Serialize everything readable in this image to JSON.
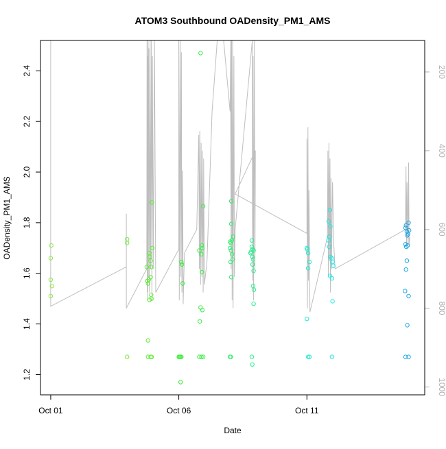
{
  "chart_data": {
    "type": "scatter",
    "title": "ATOM3 Southbound OADensity_PM1_AMS",
    "xlabel": "Date",
    "ylabel": "OADensity_PM1_AMS",
    "x_ticks": [
      "Oct 01",
      "Oct 06",
      "Oct 11"
    ],
    "y_ticks": [
      "1.2",
      "1.4",
      "1.6",
      "1.8",
      "2.0",
      "2.2",
      "2.4"
    ],
    "y_right_ticks": [
      "200",
      "400",
      "600",
      "800",
      "1000"
    ],
    "x_unit": "days of October",
    "x_range": [
      0.6,
      15.6
    ],
    "y_range": [
      1.12,
      2.52
    ],
    "y_right_range": [
      1020,
      120
    ],
    "colors": {
      "line": "#bebebe",
      "right_axis": "#b0b0b0",
      "frame": "#000000"
    },
    "points": [
      {
        "x": 1.02,
        "y": 1.71,
        "color": "#8ee84a"
      },
      {
        "x": 1.0,
        "y": 1.66,
        "color": "#8ee84a"
      },
      {
        "x": 1.0,
        "y": 1.575,
        "color": "#8ee84a"
      },
      {
        "x": 1.05,
        "y": 1.55,
        "color": "#8ee84a"
      },
      {
        "x": 1.0,
        "y": 1.51,
        "color": "#8ee84a"
      },
      {
        "x": 3.98,
        "y": 1.735,
        "color": "#72ea3c"
      },
      {
        "x": 3.98,
        "y": 1.72,
        "color": "#72ea3c"
      },
      {
        "x": 3.98,
        "y": 1.27,
        "color": "#72ea3c"
      },
      {
        "x": 4.75,
        "y": 1.625,
        "color": "#5eec34"
      },
      {
        "x": 4.77,
        "y": 1.57,
        "color": "#5eec34"
      },
      {
        "x": 4.8,
        "y": 1.56,
        "color": "#5eec34"
      },
      {
        "x": 4.85,
        "y": 1.68,
        "color": "#5eec34"
      },
      {
        "x": 4.87,
        "y": 1.665,
        "color": "#5eec34"
      },
      {
        "x": 4.9,
        "y": 1.65,
        "color": "#5eec34"
      },
      {
        "x": 4.92,
        "y": 1.625,
        "color": "#5eec34"
      },
      {
        "x": 4.95,
        "y": 1.88,
        "color": "#5eec34"
      },
      {
        "x": 4.97,
        "y": 1.7,
        "color": "#5eec34"
      },
      {
        "x": 4.9,
        "y": 1.585,
        "color": "#5eec34"
      },
      {
        "x": 4.83,
        "y": 1.575,
        "color": "#5eec34"
      },
      {
        "x": 4.92,
        "y": 1.515,
        "color": "#5eec34"
      },
      {
        "x": 4.93,
        "y": 1.5,
        "color": "#5eec34"
      },
      {
        "x": 4.85,
        "y": 1.495,
        "color": "#5eec34"
      },
      {
        "x": 4.8,
        "y": 1.335,
        "color": "#5eec34"
      },
      {
        "x": 4.8,
        "y": 1.27,
        "color": "#5eec34"
      },
      {
        "x": 4.9,
        "y": 1.27,
        "color": "#5eec34"
      },
      {
        "x": 4.94,
        "y": 1.27,
        "color": "#5eec34"
      },
      {
        "x": 6.1,
        "y": 1.645,
        "color": "#3cee3a"
      },
      {
        "x": 6.12,
        "y": 1.635,
        "color": "#3cee3a"
      },
      {
        "x": 6.15,
        "y": 1.56,
        "color": "#3cee3a"
      },
      {
        "x": 6.0,
        "y": 1.27,
        "color": "#3cee3a"
      },
      {
        "x": 6.03,
        "y": 1.27,
        "color": "#3cee3a"
      },
      {
        "x": 6.06,
        "y": 1.27,
        "color": "#3cee3a"
      },
      {
        "x": 6.1,
        "y": 1.27,
        "color": "#3cee3a"
      },
      {
        "x": 6.07,
        "y": 1.17,
        "color": "#3cee3a"
      },
      {
        "x": 6.85,
        "y": 2.47,
        "color": "#3cee4a"
      },
      {
        "x": 6.95,
        "y": 1.865,
        "color": "#3cee4a"
      },
      {
        "x": 6.9,
        "y": 1.71,
        "color": "#3cee4a"
      },
      {
        "x": 6.92,
        "y": 1.7,
        "color": "#3cee4a"
      },
      {
        "x": 6.8,
        "y": 1.69,
        "color": "#3cee4a"
      },
      {
        "x": 6.88,
        "y": 1.675,
        "color": "#3cee4a"
      },
      {
        "x": 6.9,
        "y": 1.605,
        "color": "#3cee4a"
      },
      {
        "x": 6.85,
        "y": 1.465,
        "color": "#3cee4a"
      },
      {
        "x": 6.92,
        "y": 1.455,
        "color": "#3cee4a"
      },
      {
        "x": 6.82,
        "y": 1.41,
        "color": "#3cee4a"
      },
      {
        "x": 6.8,
        "y": 1.27,
        "color": "#3cee4a"
      },
      {
        "x": 6.88,
        "y": 1.27,
        "color": "#3cee4a"
      },
      {
        "x": 6.95,
        "y": 1.27,
        "color": "#3cee4a"
      },
      {
        "x": 8.05,
        "y": 1.885,
        "color": "#30ee6c"
      },
      {
        "x": 8.05,
        "y": 1.795,
        "color": "#30ee6c"
      },
      {
        "x": 8.0,
        "y": 1.725,
        "color": "#30ee6c"
      },
      {
        "x": 8.03,
        "y": 1.72,
        "color": "#30ee6c"
      },
      {
        "x": 8.07,
        "y": 1.73,
        "color": "#30ee6c"
      },
      {
        "x": 8.12,
        "y": 1.745,
        "color": "#30ee6c"
      },
      {
        "x": 8.0,
        "y": 1.7,
        "color": "#30ee6c"
      },
      {
        "x": 8.04,
        "y": 1.69,
        "color": "#30ee6c"
      },
      {
        "x": 8.08,
        "y": 1.675,
        "color": "#30ee6c"
      },
      {
        "x": 8.02,
        "y": 1.645,
        "color": "#30ee6c"
      },
      {
        "x": 8.1,
        "y": 1.655,
        "color": "#30ee6c"
      },
      {
        "x": 8.05,
        "y": 1.585,
        "color": "#30ee6c"
      },
      {
        "x": 8.0,
        "y": 1.27,
        "color": "#30ee6c"
      },
      {
        "x": 8.03,
        "y": 1.27,
        "color": "#30ee6c"
      },
      {
        "x": 8.85,
        "y": 1.73,
        "color": "#2aee8e"
      },
      {
        "x": 8.85,
        "y": 1.705,
        "color": "#2aee8e"
      },
      {
        "x": 8.88,
        "y": 1.695,
        "color": "#2aee8e"
      },
      {
        "x": 8.92,
        "y": 1.69,
        "color": "#2aee8e"
      },
      {
        "x": 8.82,
        "y": 1.685,
        "color": "#2aee8e"
      },
      {
        "x": 8.8,
        "y": 1.68,
        "color": "#2aee8e"
      },
      {
        "x": 8.87,
        "y": 1.665,
        "color": "#2aee8e"
      },
      {
        "x": 8.9,
        "y": 1.655,
        "color": "#2aee8e"
      },
      {
        "x": 8.88,
        "y": 1.635,
        "color": "#2aee8e"
      },
      {
        "x": 8.92,
        "y": 1.61,
        "color": "#2aee8e"
      },
      {
        "x": 8.9,
        "y": 1.55,
        "color": "#2aee8e"
      },
      {
        "x": 8.93,
        "y": 1.535,
        "color": "#2aee8e"
      },
      {
        "x": 8.92,
        "y": 1.48,
        "color": "#2aee8e"
      },
      {
        "x": 8.85,
        "y": 1.27,
        "color": "#2aee8e"
      },
      {
        "x": 8.87,
        "y": 1.24,
        "color": "#2aee8e"
      },
      {
        "x": 11.0,
        "y": 1.7,
        "color": "#22e8cc"
      },
      {
        "x": 11.02,
        "y": 1.695,
        "color": "#22e8cc"
      },
      {
        "x": 11.05,
        "y": 1.68,
        "color": "#22e8cc"
      },
      {
        "x": 11.1,
        "y": 1.645,
        "color": "#22e8cc"
      },
      {
        "x": 11.05,
        "y": 1.62,
        "color": "#22e8cc"
      },
      {
        "x": 11.0,
        "y": 1.42,
        "color": "#22e8cc"
      },
      {
        "x": 11.05,
        "y": 1.27,
        "color": "#22e8cc"
      },
      {
        "x": 11.1,
        "y": 1.27,
        "color": "#22e8cc"
      },
      {
        "x": 11.85,
        "y": 1.805,
        "color": "#1ce8e8"
      },
      {
        "x": 11.9,
        "y": 1.85,
        "color": "#1ce8e8"
      },
      {
        "x": 11.92,
        "y": 1.785,
        "color": "#1ce8e8"
      },
      {
        "x": 11.88,
        "y": 1.745,
        "color": "#1ce8e8"
      },
      {
        "x": 11.85,
        "y": 1.73,
        "color": "#1ce8e8"
      },
      {
        "x": 11.87,
        "y": 1.705,
        "color": "#1ce8e8"
      },
      {
        "x": 11.92,
        "y": 1.665,
        "color": "#1ce8e8"
      },
      {
        "x": 11.97,
        "y": 1.66,
        "color": "#1ce8e8"
      },
      {
        "x": 12.0,
        "y": 1.645,
        "color": "#1ce8e8"
      },
      {
        "x": 12.03,
        "y": 1.63,
        "color": "#1ce8e8"
      },
      {
        "x": 11.9,
        "y": 1.59,
        "color": "#1ce8e8"
      },
      {
        "x": 11.98,
        "y": 1.58,
        "color": "#1ce8e8"
      },
      {
        "x": 12.0,
        "y": 1.49,
        "color": "#1ce8e8"
      },
      {
        "x": 11.98,
        "y": 1.27,
        "color": "#1ce8e8"
      },
      {
        "x": 14.85,
        "y": 1.78,
        "color": "#1aa6e4"
      },
      {
        "x": 14.87,
        "y": 1.79,
        "color": "#1aa6e4"
      },
      {
        "x": 14.97,
        "y": 1.8,
        "color": "#1aa6e4"
      },
      {
        "x": 14.9,
        "y": 1.765,
        "color": "#1aa6e4"
      },
      {
        "x": 14.95,
        "y": 1.755,
        "color": "#1aa6e4"
      },
      {
        "x": 14.99,
        "y": 1.77,
        "color": "#1aa6e4"
      },
      {
        "x": 14.92,
        "y": 1.75,
        "color": "#1aa6e4"
      },
      {
        "x": 14.85,
        "y": 1.715,
        "color": "#1aa6e4"
      },
      {
        "x": 14.88,
        "y": 1.705,
        "color": "#1aa6e4"
      },
      {
        "x": 14.93,
        "y": 1.71,
        "color": "#1aa6e4"
      },
      {
        "x": 14.9,
        "y": 1.65,
        "color": "#1aa6e4"
      },
      {
        "x": 14.87,
        "y": 1.615,
        "color": "#1aa6e4"
      },
      {
        "x": 14.83,
        "y": 1.53,
        "color": "#1aa6e4"
      },
      {
        "x": 14.97,
        "y": 1.51,
        "color": "#1aa6e4"
      },
      {
        "x": 14.92,
        "y": 1.395,
        "color": "#1aa6e4"
      },
      {
        "x": 14.85,
        "y": 1.27,
        "color": "#1aa6e4"
      },
      {
        "x": 14.97,
        "y": 1.27,
        "color": "#1aa6e4"
      }
    ],
    "line_right_axis": [
      [
        1.0,
        0
      ],
      [
        1.0,
        795
      ],
      [
        3.95,
        695
      ],
      [
        3.95,
        560
      ],
      [
        3.95,
        800
      ],
      [
        4.75,
        700
      ],
      [
        4.76,
        120
      ],
      [
        4.77,
        760
      ],
      [
        4.78,
        160
      ],
      [
        4.79,
        780
      ],
      [
        4.8,
        120
      ],
      [
        4.81,
        720
      ],
      [
        4.83,
        140
      ],
      [
        4.85,
        760
      ],
      [
        4.88,
        120
      ],
      [
        4.9,
        700
      ],
      [
        4.93,
        120
      ],
      [
        4.95,
        780
      ],
      [
        4.97,
        160
      ],
      [
        5.0,
        700
      ],
      [
        5.05,
        120
      ],
      [
        5.1,
        760
      ],
      [
        6.0,
        650
      ],
      [
        6.0,
        120
      ],
      [
        6.02,
        780
      ],
      [
        6.05,
        120
      ],
      [
        6.08,
        720
      ],
      [
        6.1,
        150
      ],
      [
        6.12,
        760
      ],
      [
        6.15,
        450
      ],
      [
        6.17,
        790
      ],
      [
        6.22,
        660
      ],
      [
        6.7,
        600
      ],
      [
        6.78,
        360
      ],
      [
        6.8,
        700
      ],
      [
        6.82,
        350
      ],
      [
        6.85,
        740
      ],
      [
        6.87,
        380
      ],
      [
        6.9,
        720
      ],
      [
        6.92,
        400
      ],
      [
        6.95,
        760
      ],
      [
        6.97,
        420
      ],
      [
        7.0,
        740
      ],
      [
        7.1,
        680
      ],
      [
        7.3,
        300
      ],
      [
        7.5,
        120
      ],
      [
        7.75,
        120
      ],
      [
        8.0,
        300
      ],
      [
        8.02,
        120
      ],
      [
        8.04,
        700
      ],
      [
        8.06,
        120
      ],
      [
        8.08,
        780
      ],
      [
        8.1,
        120
      ],
      [
        8.12,
        800
      ],
      [
        8.15,
        160
      ],
      [
        8.17,
        720
      ],
      [
        8.2,
        600
      ],
      [
        8.87,
        120
      ],
      [
        8.88,
        730
      ],
      [
        8.9,
        160
      ],
      [
        8.92,
        780
      ],
      [
        8.95,
        120
      ],
      [
        8.97,
        700
      ],
      [
        8.99,
        400
      ],
      [
        8.2,
        510
      ],
      [
        11.0,
        610
      ],
      [
        11.0,
        370
      ],
      [
        11.02,
        800
      ],
      [
        11.04,
        340
      ],
      [
        11.06,
        730
      ],
      [
        11.08,
        500
      ],
      [
        11.12,
        810
      ],
      [
        11.8,
        620
      ],
      [
        11.82,
        400
      ],
      [
        11.84,
        720
      ],
      [
        11.86,
        380
      ],
      [
        11.88,
        680
      ],
      [
        11.9,
        420
      ],
      [
        11.92,
        760
      ],
      [
        11.94,
        470
      ],
      [
        11.96,
        700
      ],
      [
        12.0,
        480
      ],
      [
        12.05,
        640
      ],
      [
        12.1,
        700
      ],
      [
        14.85,
        600
      ],
      [
        14.87,
        440
      ],
      [
        14.89,
        640
      ],
      [
        14.91,
        480
      ],
      [
        14.95,
        640
      ],
      [
        14.97,
        430
      ],
      [
        14.99,
        640
      ],
      [
        15.02,
        620
      ]
    ]
  }
}
